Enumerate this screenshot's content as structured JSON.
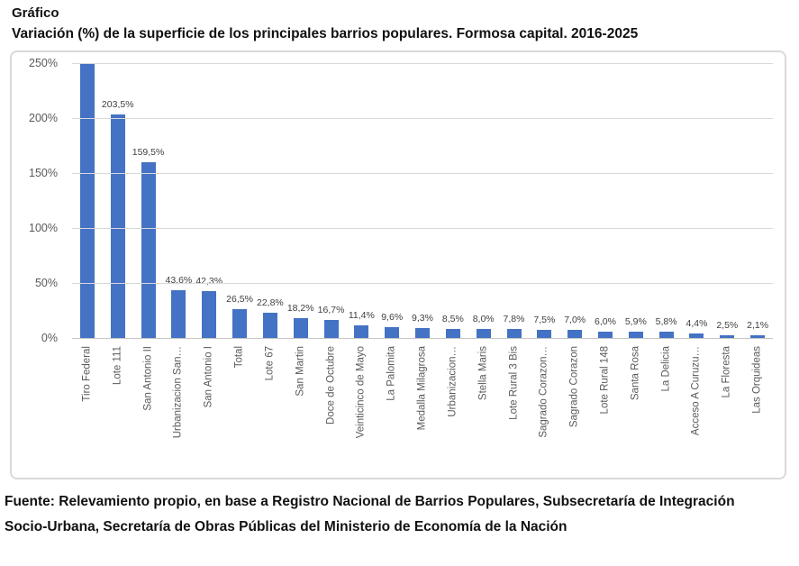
{
  "page": {
    "title_line1": "Gráfico",
    "title_line2": "Variación (%) de la superficie de los principales barrios populares. Formosa capital. 2016-2025",
    "source": "Fuente: Relevamiento propio, en base a Registro Nacional de Barrios Populares, Subsecretaría de Integración Socio-Urbana, Secretaría de Obras Públicas del Ministerio de Economía de la Nación"
  },
  "colors": {
    "bar": "#4472C4",
    "gridline": "#D9D9D9",
    "axis_line": "#C6C6C6",
    "axis_text": "#595959",
    "data_label_text": "#404040",
    "chart_border": "#D9D9D9"
  },
  "chart_data": {
    "type": "bar",
    "title": "Variación (%) de la superficie de los principales barrios populares. Formosa capital. 2016-2025",
    "categories": [
      "Tiro Federal",
      "Lote 111",
      "San Antonio II",
      "Urbanizacion San…",
      "San Antonio I",
      "Total",
      "Lote 67",
      "San Martin",
      "Doce de Octubre",
      "Veinticinco de Mayo",
      "La Palomita",
      "Medalla Milagrosa",
      "Urbanizacion…",
      "Stella Maris",
      "Lote Rural 3 Bis",
      "Sagrado Corazon…",
      "Sagrado Corazon",
      "Lote Rural 148",
      "Santa Rosa",
      "La Delicia",
      "Acceso A Curuzu…",
      "La Floresta",
      "Las Orquideas"
    ],
    "values": [
      250,
      203.5,
      159.5,
      43.6,
      42.3,
      26.5,
      22.8,
      18.2,
      16.7,
      11.4,
      9.6,
      9.3,
      8.5,
      8.0,
      7.8,
      7.5,
      7.0,
      6.0,
      5.9,
      5.8,
      4.4,
      2.5,
      2.1
    ],
    "data_labels": [
      "",
      "203,5%",
      "159,5%",
      "43,6%",
      "42,3%",
      "26,5%",
      "22,8%",
      "18,2%",
      "16,7%",
      "11,4%",
      "9,6%",
      "9,3%",
      "8,5%",
      "8,0%",
      "7,8%",
      "7,5%",
      "7,0%",
      "6,0%",
      "5,9%",
      "5,8%",
      "4,4%",
      "2,5%",
      "2,1%"
    ],
    "ylim": [
      0,
      250
    ],
    "ytick_values": [
      0,
      50,
      100,
      150,
      200,
      250
    ],
    "ytick_labels": [
      "0%",
      "50%",
      "100%",
      "150%",
      "200%",
      "250%"
    ],
    "xlabel": "",
    "ylabel": "",
    "grid": true,
    "legend": "none"
  }
}
